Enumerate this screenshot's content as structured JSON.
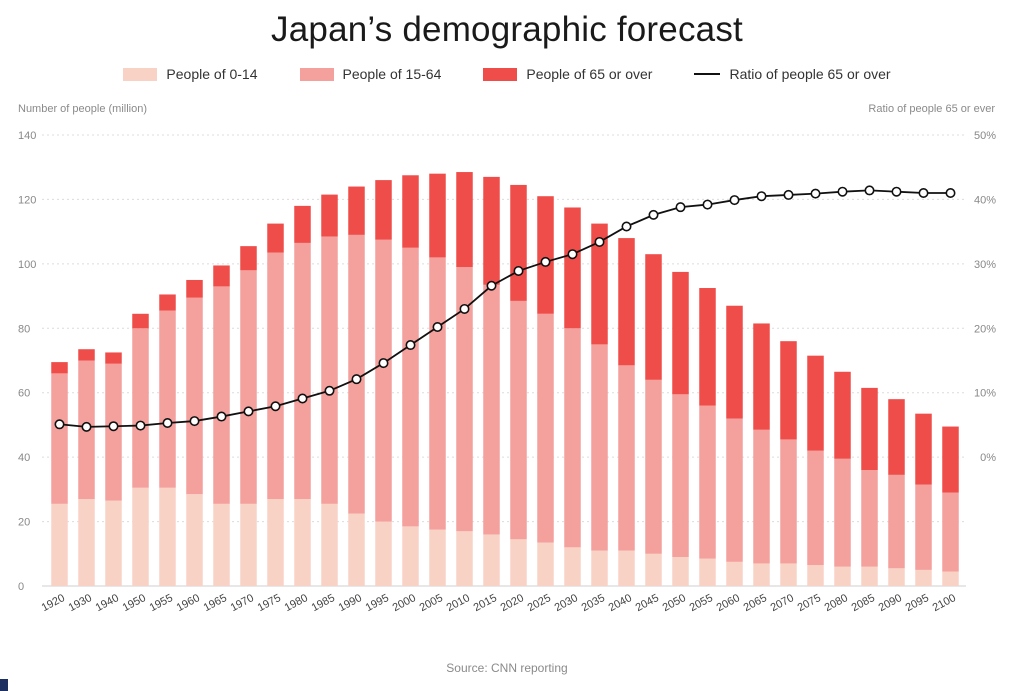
{
  "chart_data": {
    "type": "bar",
    "title": "Japan’s demographic forecast",
    "y_left_label": "Number of people (million)",
    "y_right_label": "Ratio of people 65 or ever",
    "y_left_ticks": [
      "0",
      "20",
      "40",
      "60",
      "80",
      "100",
      "120",
      "140"
    ],
    "y_right_ticks": [
      "0%",
      "10%",
      "20%",
      "30%",
      "40%",
      "50%"
    ],
    "ylim_left": [
      0,
      140
    ],
    "ylim_right_percent": [
      0,
      50
    ],
    "right_axis_zero_at_left_value": 40,
    "grid": true,
    "legend_placement": "top-center",
    "source": "Source: CNN reporting",
    "categories": [
      "1920",
      "1930",
      "1940",
      "1950",
      "1955",
      "1960",
      "1965",
      "1970",
      "1975",
      "1980",
      "1985",
      "1990",
      "1995",
      "2000",
      "2005",
      "2010",
      "2015",
      "2020",
      "2025",
      "2030",
      "2035",
      "2040",
      "2045",
      "2050",
      "2055",
      "2060",
      "2065",
      "2070",
      "2075",
      "2080",
      "2085",
      "2090",
      "2095",
      "2100"
    ],
    "series": [
      {
        "name": "People of 0-14",
        "kind": "stacked-bar",
        "color": "#f9d2c6",
        "values": [
          25.5,
          27,
          26.5,
          30.5,
          30.5,
          28.5,
          25.5,
          25.5,
          27,
          27,
          25.5,
          22.5,
          20,
          18.5,
          17.5,
          17,
          16,
          14.5,
          13.5,
          12,
          11,
          11,
          10,
          9,
          8.5,
          7.5,
          7,
          7,
          6.5,
          6,
          6,
          5.5,
          5,
          4.5
        ]
      },
      {
        "name": "People of 15-64",
        "kind": "stacked-bar",
        "color": "#f4a09d",
        "values": [
          40.5,
          43,
          42.5,
          49.5,
          55,
          61,
          67.5,
          72.5,
          76.5,
          79.5,
          83,
          86.5,
          87.5,
          86.5,
          84.5,
          82,
          77.5,
          74,
          71,
          68,
          64,
          57.5,
          54,
          50.5,
          47.5,
          44.5,
          41.5,
          38.5,
          35.5,
          33.5,
          30,
          29,
          26.5,
          24.5
        ]
      },
      {
        "name": "People of 65 or over",
        "kind": "stacked-bar",
        "color": "#ef4d4a",
        "values": [
          3.5,
          3.5,
          3.5,
          4.5,
          5,
          5.5,
          6.5,
          7.5,
          9,
          11.5,
          13,
          15,
          18.5,
          22.5,
          26,
          29.5,
          33.5,
          36,
          36.5,
          37.5,
          37.5,
          39.5,
          39,
          38,
          36.5,
          35,
          33,
          30.5,
          29.5,
          27,
          25.5,
          23.5,
          22,
          20.5
        ]
      },
      {
        "name": "Ratio of people 65 or over",
        "kind": "line",
        "axis": "right",
        "color": "#111111",
        "values_percent": [
          5.1,
          4.7,
          4.8,
          4.9,
          5.3,
          5.6,
          6.3,
          7.1,
          7.9,
          9.1,
          10.3,
          12.1,
          14.6,
          17.4,
          20.2,
          23.0,
          26.6,
          28.9,
          30.3,
          31.5,
          33.4,
          35.8,
          37.6,
          38.8,
          39.2,
          39.9,
          40.5,
          40.7,
          40.9,
          41.2,
          41.4,
          41.2,
          41.0,
          41.0
        ]
      }
    ]
  }
}
